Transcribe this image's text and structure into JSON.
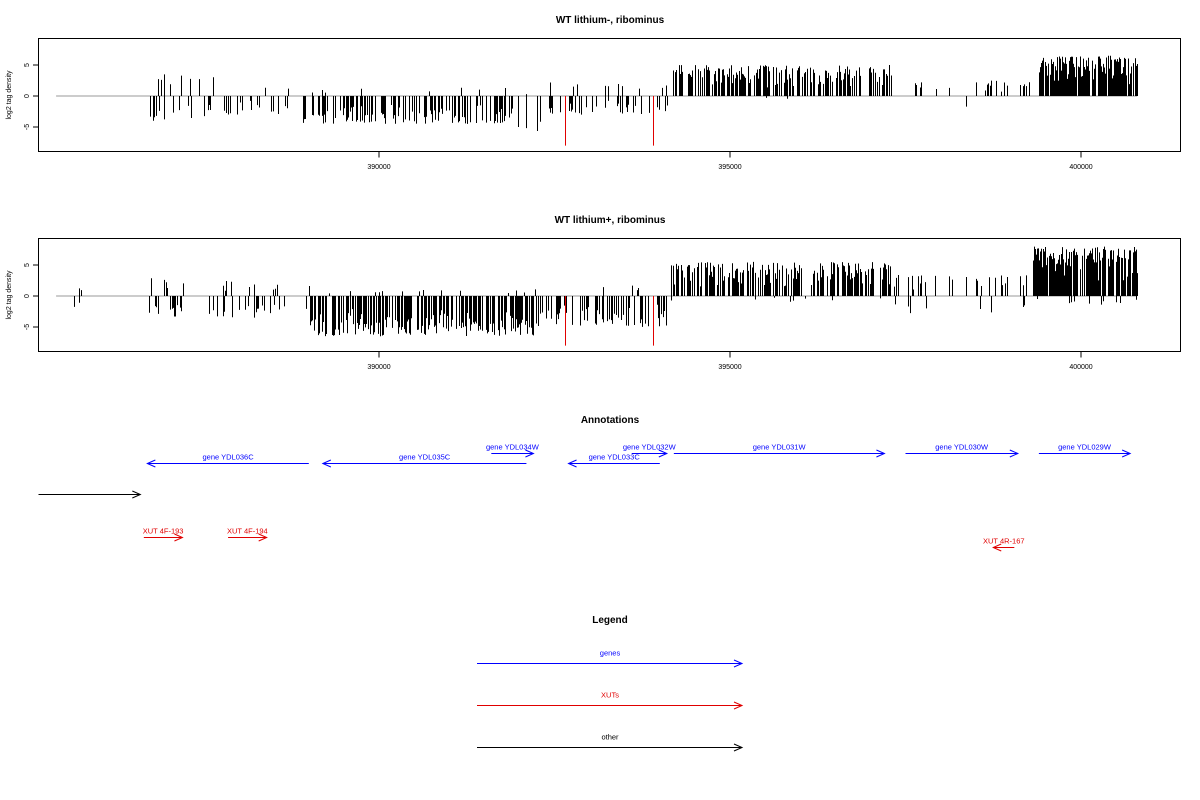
{
  "chart_data": [
    {
      "type": "bar",
      "title": "WT lithium-, ribominus",
      "xlabel": "",
      "ylabel": "log2 tag density",
      "xlim": [
        385000,
        401000
      ],
      "ylim": [
        -8.5,
        9
      ],
      "yticks": [
        -5,
        0,
        5
      ],
      "xticks": [
        390000,
        395000,
        400000
      ],
      "xtick_labels": [
        "390000",
        "395000",
        "400000"
      ],
      "baseline": [
        385400,
        400800
      ],
      "colors": {
        "bars": "#000000",
        "highlight": "#e00000",
        "baseline": "#999999"
      },
      "segments": [
        {
          "from": 386700,
          "to": 388000,
          "count": 28,
          "amp": [
            -4,
            3.5
          ],
          "mix": 0.3
        },
        {
          "from": 388000,
          "to": 388700,
          "count": 14,
          "amp": [
            -3,
            1.5
          ],
          "mix": 0.1
        },
        {
          "from": 388900,
          "to": 391900,
          "count": 140,
          "amp": [
            -4.5,
            1.5
          ],
          "mix": 0.06
        },
        {
          "from": 391900,
          "to": 392300,
          "count": 6,
          "amp": [
            -6,
            0.5
          ],
          "mix": 0.05
        },
        {
          "from": 392400,
          "to": 392700,
          "count": 6,
          "amp": [
            -3,
            2.5
          ],
          "mix": 0.4
        },
        {
          "from": 392700,
          "to": 394100,
          "count": 40,
          "amp": [
            -3,
            2
          ],
          "mix": 0.15
        },
        {
          "from": 394150,
          "to": 397300,
          "count": 190,
          "amp": [
            -0.5,
            5
          ],
          "mix": 0.98
        },
        {
          "from": 397600,
          "to": 399400,
          "count": 24,
          "amp": [
            -2,
            2.5
          ],
          "mix": 0.85
        },
        {
          "from": 399400,
          "to": 400800,
          "count": 180,
          "amp": [
            0,
            6.5
          ],
          "mix": 1.0
        }
      ],
      "highlights": [
        {
          "x": 392650,
          "value": -8.0
        },
        {
          "x": 393900,
          "value": -8.0
        }
      ]
    },
    {
      "type": "bar",
      "title": "WT lithium+, ribominus",
      "xlabel": "",
      "ylabel": "log2 tag density",
      "xlim": [
        385000,
        401000
      ],
      "ylim": [
        -8.5,
        9
      ],
      "yticks": [
        -5,
        0,
        5
      ],
      "xticks": [
        390000,
        395000,
        400000
      ],
      "xtick_labels": [
        "390000",
        "395000",
        "400000"
      ],
      "baseline": [
        385400,
        400800
      ],
      "colors": {
        "bars": "#000000",
        "highlight": "#e00000",
        "baseline": "#999999"
      },
      "segments": [
        {
          "from": 385650,
          "to": 386300,
          "count": 4,
          "amp": [
            -2,
            1.3
          ],
          "mix": 0.4
        },
        {
          "from": 386700,
          "to": 388000,
          "count": 30,
          "amp": [
            -3.5,
            3
          ],
          "mix": 0.3
        },
        {
          "from": 388000,
          "to": 389000,
          "count": 22,
          "amp": [
            -4,
            2
          ],
          "mix": 0.2
        },
        {
          "from": 389000,
          "to": 392200,
          "count": 230,
          "amp": [
            -6.5,
            1
          ],
          "mix": 0.05
        },
        {
          "from": 392200,
          "to": 394100,
          "count": 70,
          "amp": [
            -5,
            2
          ],
          "mix": 0.1
        },
        {
          "from": 394150,
          "to": 397300,
          "count": 210,
          "amp": [
            -1,
            5.5
          ],
          "mix": 0.97
        },
        {
          "from": 397300,
          "to": 399300,
          "count": 40,
          "amp": [
            -3,
            3.5
          ],
          "mix": 0.7
        },
        {
          "from": 399300,
          "to": 400800,
          "count": 210,
          "amp": [
            -1.5,
            8
          ],
          "mix": 0.95
        }
      ],
      "highlights": [
        {
          "x": 392650,
          "value": -8.0
        },
        {
          "x": 393900,
          "value": -8.0
        }
      ]
    }
  ],
  "annotations": {
    "title": "Annotations",
    "items": [
      {
        "label": "gene YDL036C",
        "from": 389000,
        "to": 386700,
        "row": 1,
        "type": "gene"
      },
      {
        "label": "gene YDL035C",
        "from": 392100,
        "to": 389200,
        "row": 1,
        "type": "gene"
      },
      {
        "label": "gene YDL034W",
        "from": 391600,
        "to": 392200,
        "row": 0,
        "type": "gene"
      },
      {
        "label": "gene YDL033C",
        "from": 394000,
        "to": 392700,
        "row": 1,
        "type": "gene"
      },
      {
        "label": "gene YDL032W",
        "from": 393600,
        "to": 394100,
        "row": 0,
        "type": "gene"
      },
      {
        "label": "gene YDL031W",
        "from": 394200,
        "to": 397200,
        "row": 0,
        "type": "gene"
      },
      {
        "label": "gene YDL030W",
        "from": 397500,
        "to": 399100,
        "row": 0,
        "type": "gene"
      },
      {
        "label": "gene YDL029W",
        "from": 399400,
        "to": 400700,
        "row": 0,
        "type": "gene"
      },
      {
        "label": "",
        "from": 383400,
        "to": 386600,
        "row": 2,
        "type": "other"
      },
      {
        "label": "XUT 4F-193",
        "from": 386650,
        "to": 387200,
        "row": 3,
        "type": "xut"
      },
      {
        "label": "XUT 4F-194",
        "from": 387850,
        "to": 388400,
        "row": 3,
        "type": "xut"
      },
      {
        "label": "XUT 4R-167",
        "from": 399050,
        "to": 398750,
        "row": 4,
        "type": "xut"
      }
    ]
  },
  "legend": {
    "title": "Legend",
    "entries": [
      {
        "label": "genes",
        "type": "gene"
      },
      {
        "label": "XUTs",
        "type": "xut"
      },
      {
        "label": "other",
        "type": "other"
      }
    ]
  },
  "colors": {
    "gene": "#0000ff",
    "xut": "#e00000",
    "other": "#000000"
  }
}
